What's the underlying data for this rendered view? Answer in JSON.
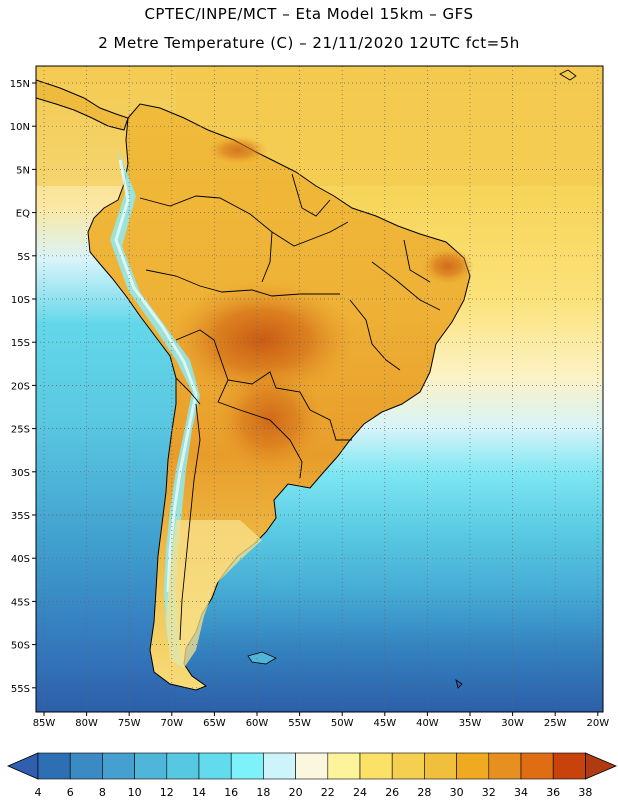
{
  "header": {
    "line1": "CPTEC/INPE/MCT –  Eta Model 15km – GFS",
    "line2": "2 Metre Temperature (C) – 21/11/2020 12UTC fct=5h"
  },
  "map": {
    "region": "South America",
    "lat_labels": [
      "15N",
      "10N",
      "5N",
      "EQ",
      "5S",
      "10S",
      "15S",
      "20S",
      "25S",
      "30S",
      "35S",
      "40S",
      "45S",
      "50S",
      "55S"
    ],
    "lon_labels": [
      "85W",
      "80W",
      "75W",
      "70W",
      "65W",
      "60W",
      "55W",
      "50W",
      "45W",
      "40W",
      "35W",
      "30W",
      "25W",
      "20W"
    ]
  },
  "colorbar": {
    "labels": [
      "4",
      "6",
      "8",
      "10",
      "12",
      "14",
      "16",
      "18",
      "20",
      "22",
      "24",
      "26",
      "28",
      "30",
      "32",
      "34",
      "36",
      "38"
    ],
    "colors": [
      "#2e6fb4",
      "#3b8ac4",
      "#45a0cf",
      "#4fb6d9",
      "#56c8e2",
      "#62dbec",
      "#7ef2fa",
      "#cdf3fb",
      "#fbf7df",
      "#fdf39a",
      "#fbe267",
      "#f5cf4f",
      "#f0bf3b",
      "#efaa22",
      "#e8901f",
      "#de6d13",
      "#c8420b"
    ],
    "under_color": "#2f5fae",
    "over_color": "#b03a12"
  },
  "colors": {
    "ocean_north": "#f6d55c",
    "ocean_south_deep": "#2f62ab",
    "land_warm": "#e9a52a",
    "land_hot": "#d4791e",
    "andes": "#7ef2fa"
  }
}
